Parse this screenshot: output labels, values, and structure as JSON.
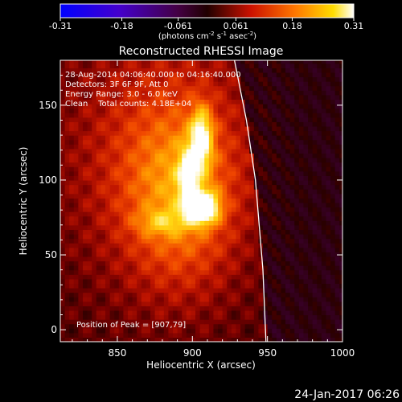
{
  "chart_data": {
    "type": "heatmap",
    "title": "Reconstructed RHESSI Image",
    "colorbar": {
      "ticks": [
        -0.31,
        -0.18,
        -0.061,
        0.061,
        0.18,
        0.31
      ],
      "tick_labels": [
        "-0.31",
        "-0.18",
        "-0.061",
        "0.061",
        "0.18",
        "0.31"
      ],
      "range": [
        -0.31,
        0.31
      ],
      "colormap": "blue-purple-red-yellow-white",
      "label_parts": [
        "(photons cm",
        "-2",
        " s",
        "-1",
        " asec",
        "-2",
        ")"
      ]
    },
    "xlabel": "Heliocentric X (arcsec)",
    "ylabel": "Heliocentric Y (arcsec)",
    "xlim": [
      812,
      1000
    ],
    "ylim": [
      -8,
      180
    ],
    "xticks": [
      850,
      900,
      950,
      1000
    ],
    "xtick_labels": [
      "850",
      "900",
      "950",
      "1000"
    ],
    "yticks": [
      0,
      50,
      100,
      150
    ],
    "ytick_labels": [
      "0",
      "50",
      "100",
      "150"
    ],
    "annotations": [
      "28-Aug-2014 04:06:40.000 to 04:16:40.000",
      "Detectors: 3F 6F 9F, Att 0",
      "Energy Range: 3.0 - 6.0 keV",
      "Clean    Total counts: 4.18E+04"
    ],
    "peak_label": "Position of Peak = [907,79]",
    "sources": [
      {
        "x": 906,
        "y": 128,
        "sigma_x": 5,
        "sigma_y": 14,
        "amplitude": 0.22
      },
      {
        "x": 907,
        "y": 82,
        "sigma_x": 7,
        "sigma_y": 7,
        "amplitude": 0.31
      },
      {
        "x": 897,
        "y": 103,
        "sigma_x": 5,
        "sigma_y": 14,
        "amplitude": 0.15
      },
      {
        "x": 892,
        "y": 88,
        "sigma_x": 25,
        "sigma_y": 40,
        "amplitude": 0.12
      },
      {
        "x": 880,
        "y": 72,
        "sigma_x": 12,
        "sigma_y": 6,
        "amplitude": 0.08
      },
      {
        "x": 880,
        "y": 120,
        "sigma_x": 45,
        "sigma_y": 60,
        "amplitude": 0.08
      }
    ],
    "limb_curve": {
      "x": [
        928,
        936,
        942,
        947,
        949
      ],
      "y": [
        180,
        140,
        100,
        40,
        -8
      ]
    },
    "grid": false
  },
  "timestamp": "24-Jan-2017 06:26"
}
